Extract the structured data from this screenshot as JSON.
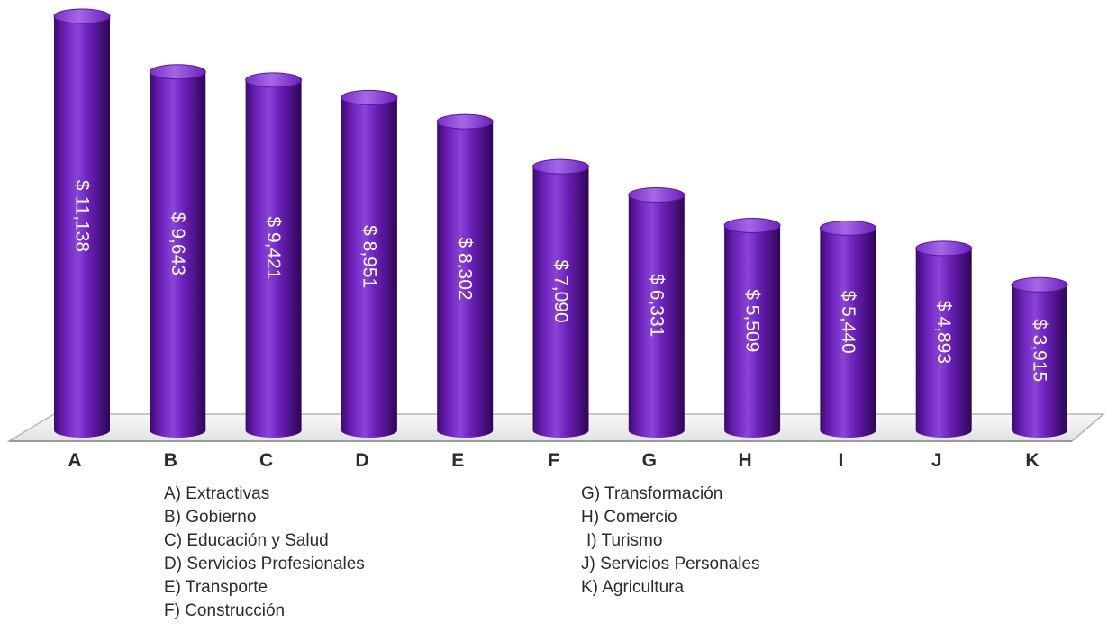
{
  "chart_data": {
    "type": "bar",
    "title": "",
    "xlabel": "",
    "ylabel": "",
    "ylim": [
      0,
      11138
    ],
    "grid": false,
    "categories": [
      "A",
      "B",
      "C",
      "D",
      "E",
      "F",
      "G",
      "H",
      "I",
      "J",
      "K"
    ],
    "values": [
      11138,
      9643,
      9421,
      8951,
      8302,
      7090,
      6331,
      5509,
      5440,
      4893,
      3915
    ],
    "value_labels": [
      "$ 11,138",
      "$ 9,643",
      "$ 9,421",
      "$ 8,951",
      "$ 8,302",
      "$ 7,090",
      "$ 6,331",
      "$ 5,509",
      "$ 5,440",
      "$ 4,893",
      "$ 3,915"
    ],
    "legend": [
      "A) Extractivas",
      "B) Gobierno",
      "C) Educación y Salud",
      "D) Servicios Profesionales",
      "E) Transporte",
      "F) Construcción",
      "G) Transformación",
      "H) Comercio",
      "I) Turismo",
      "J) Servicios Personales",
      "K) Agricultura"
    ],
    "legend_placement": "bottom",
    "colors": {
      "bar": "#6a1fb8",
      "bar_dark": "#34085e",
      "bar_light": "#a368e6",
      "floor": "#f2f2f2",
      "floor_edge": "#b5b5b5",
      "label_text": "#ffffff",
      "axis_text": "#2b2b2b"
    }
  }
}
